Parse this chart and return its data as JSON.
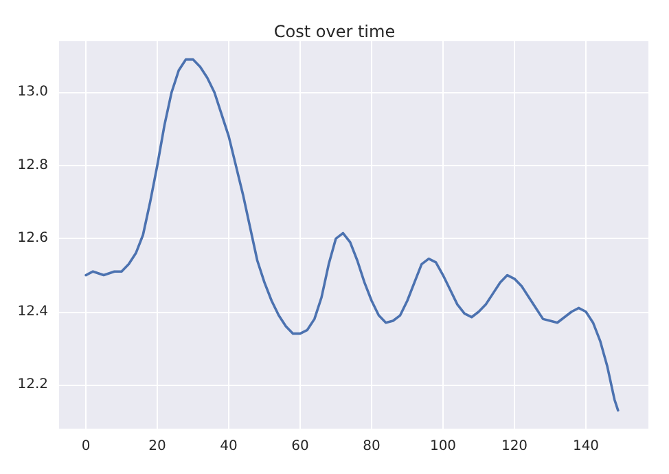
{
  "chart_data": {
    "type": "line",
    "title": "Cost over time",
    "x": [
      0,
      2,
      5,
      8,
      10,
      12,
      14,
      16,
      18,
      20,
      22,
      24,
      26,
      28,
      30,
      32,
      34,
      36,
      38,
      40,
      42,
      44,
      46,
      48,
      50,
      52,
      54,
      56,
      58,
      60,
      62,
      64,
      66,
      68,
      70,
      72,
      74,
      76,
      78,
      80,
      82,
      84,
      86,
      88,
      90,
      92,
      94,
      96,
      98,
      100,
      102,
      104,
      106,
      108,
      110,
      112,
      114,
      116,
      118,
      120,
      122,
      124,
      126,
      128,
      130,
      132,
      134,
      136,
      138,
      140,
      142,
      144,
      146,
      148,
      149
    ],
    "series": [
      {
        "color": "#4c72b0",
        "values": [
          12.5,
          12.51,
          12.5,
          12.51,
          12.51,
          12.53,
          12.56,
          12.61,
          12.7,
          12.8,
          12.91,
          13.0,
          13.06,
          13.09,
          13.09,
          13.07,
          13.04,
          13.0,
          12.94,
          12.88,
          12.8,
          12.72,
          12.63,
          12.54,
          12.48,
          12.43,
          12.39,
          12.36,
          12.34,
          12.34,
          12.35,
          12.38,
          12.44,
          12.53,
          12.6,
          12.615,
          12.59,
          12.54,
          12.48,
          12.43,
          12.39,
          12.37,
          12.375,
          12.39,
          12.43,
          12.48,
          12.53,
          12.545,
          12.535,
          12.5,
          12.46,
          12.42,
          12.395,
          12.385,
          12.4,
          12.42,
          12.45,
          12.48,
          12.5,
          12.49,
          12.47,
          12.44,
          12.41,
          12.38,
          12.375,
          12.37,
          12.385,
          12.4,
          12.41,
          12.4,
          12.37,
          12.32,
          12.25,
          12.16,
          12.13
        ]
      }
    ],
    "xlim": [
      -7.5,
      157.5
    ],
    "xticks": [
      0,
      20,
      40,
      60,
      80,
      100,
      120,
      140
    ],
    "ylim": [
      12.08,
      13.14
    ],
    "yticks": [
      12.2,
      12.4,
      12.6,
      12.8,
      {
        "value": 13,
        "label": "13.0"
      }
    ],
    "grid": true,
    "marker": "none",
    "line_style": "solid"
  }
}
